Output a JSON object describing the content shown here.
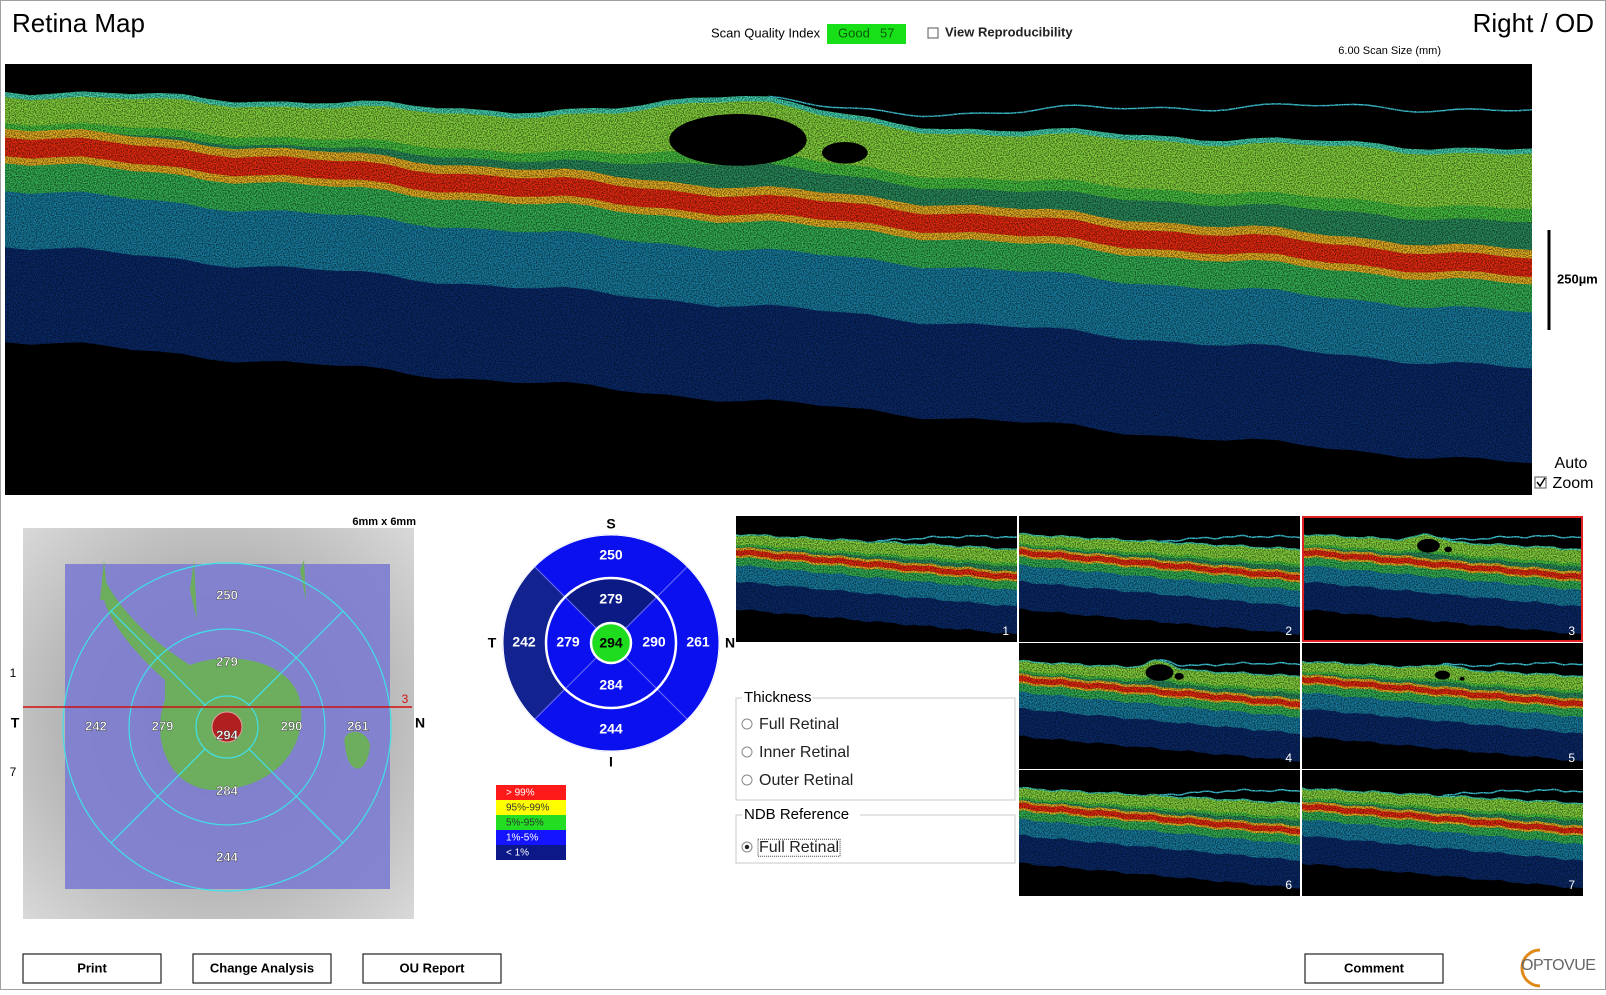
{
  "header": {
    "title": "Retina Map",
    "scan_quality_label": "Scan Quality Index",
    "scan_quality_grade": "Good",
    "scan_quality_value": 57,
    "view_reproducibility": "View Reproducibility",
    "eye": "Right / OD",
    "scan_size": "6.00 Scan Size (mm)"
  },
  "bscan": {
    "scale_label": "250µm",
    "auto_zoom": [
      "Auto",
      "Zoom"
    ],
    "auto_zoom_checked": true
  },
  "thickness_map": {
    "size_label": "6mm x 6mm",
    "side_labels": {
      "temporal": "T",
      "nasal": "N"
    },
    "line_ticks": [
      1,
      7
    ],
    "selected_line": 3
  },
  "sectors": {
    "center": {
      "value": 294,
      "color": "#1fdc1f"
    },
    "inner": {
      "superior": {
        "value": 279,
        "color": "#0c1a86"
      },
      "nasal": {
        "value": 290,
        "color": "#0a10ee"
      },
      "inferior": {
        "value": 284,
        "color": "#0a10ee"
      },
      "temporal": {
        "value": 279,
        "color": "#0a10ee"
      }
    },
    "outer": {
      "superior": {
        "value": 250,
        "color": "#0a10ee"
      },
      "nasal": {
        "value": 261,
        "color": "#0a10ee"
      },
      "inferior": {
        "value": 244,
        "color": "#0a10ee"
      },
      "temporal": {
        "value": 242,
        "color": "#12228e"
      }
    }
  },
  "sector_chart": {
    "directions": {
      "superior": "S",
      "nasal": "N",
      "inferior": "I",
      "temporal": "T"
    }
  },
  "legend": [
    {
      "label": "> 99%",
      "color": "#ff1a1a"
    },
    {
      "label": "95%-99%",
      "color": "#ffff00"
    },
    {
      "label": "5%-95%",
      "color": "#22dd22"
    },
    {
      "label": "1%-5%",
      "color": "#1414ff"
    },
    {
      "label": "< 1%",
      "color": "#0c1888"
    }
  ],
  "thumbnails": [
    {
      "number": 1,
      "selected": false
    },
    {
      "number": 2,
      "selected": false
    },
    {
      "number": 3,
      "selected": true
    },
    {
      "number": 4,
      "selected": false
    },
    {
      "number": 5,
      "selected": false
    },
    {
      "number": 6,
      "selected": false
    },
    {
      "number": 7,
      "selected": false
    }
  ],
  "thickness_panel": {
    "title": "Thickness",
    "options": [
      "Full Retinal",
      "Inner Retinal",
      "Outer Retinal"
    ]
  },
  "ndb_panel": {
    "title": "NDB Reference",
    "options": [
      "Full Retinal"
    ],
    "selected": 0
  },
  "buttons": [
    "Print",
    "Change Analysis",
    "OU Report",
    "Comment"
  ],
  "logo": "OPTOVUE"
}
